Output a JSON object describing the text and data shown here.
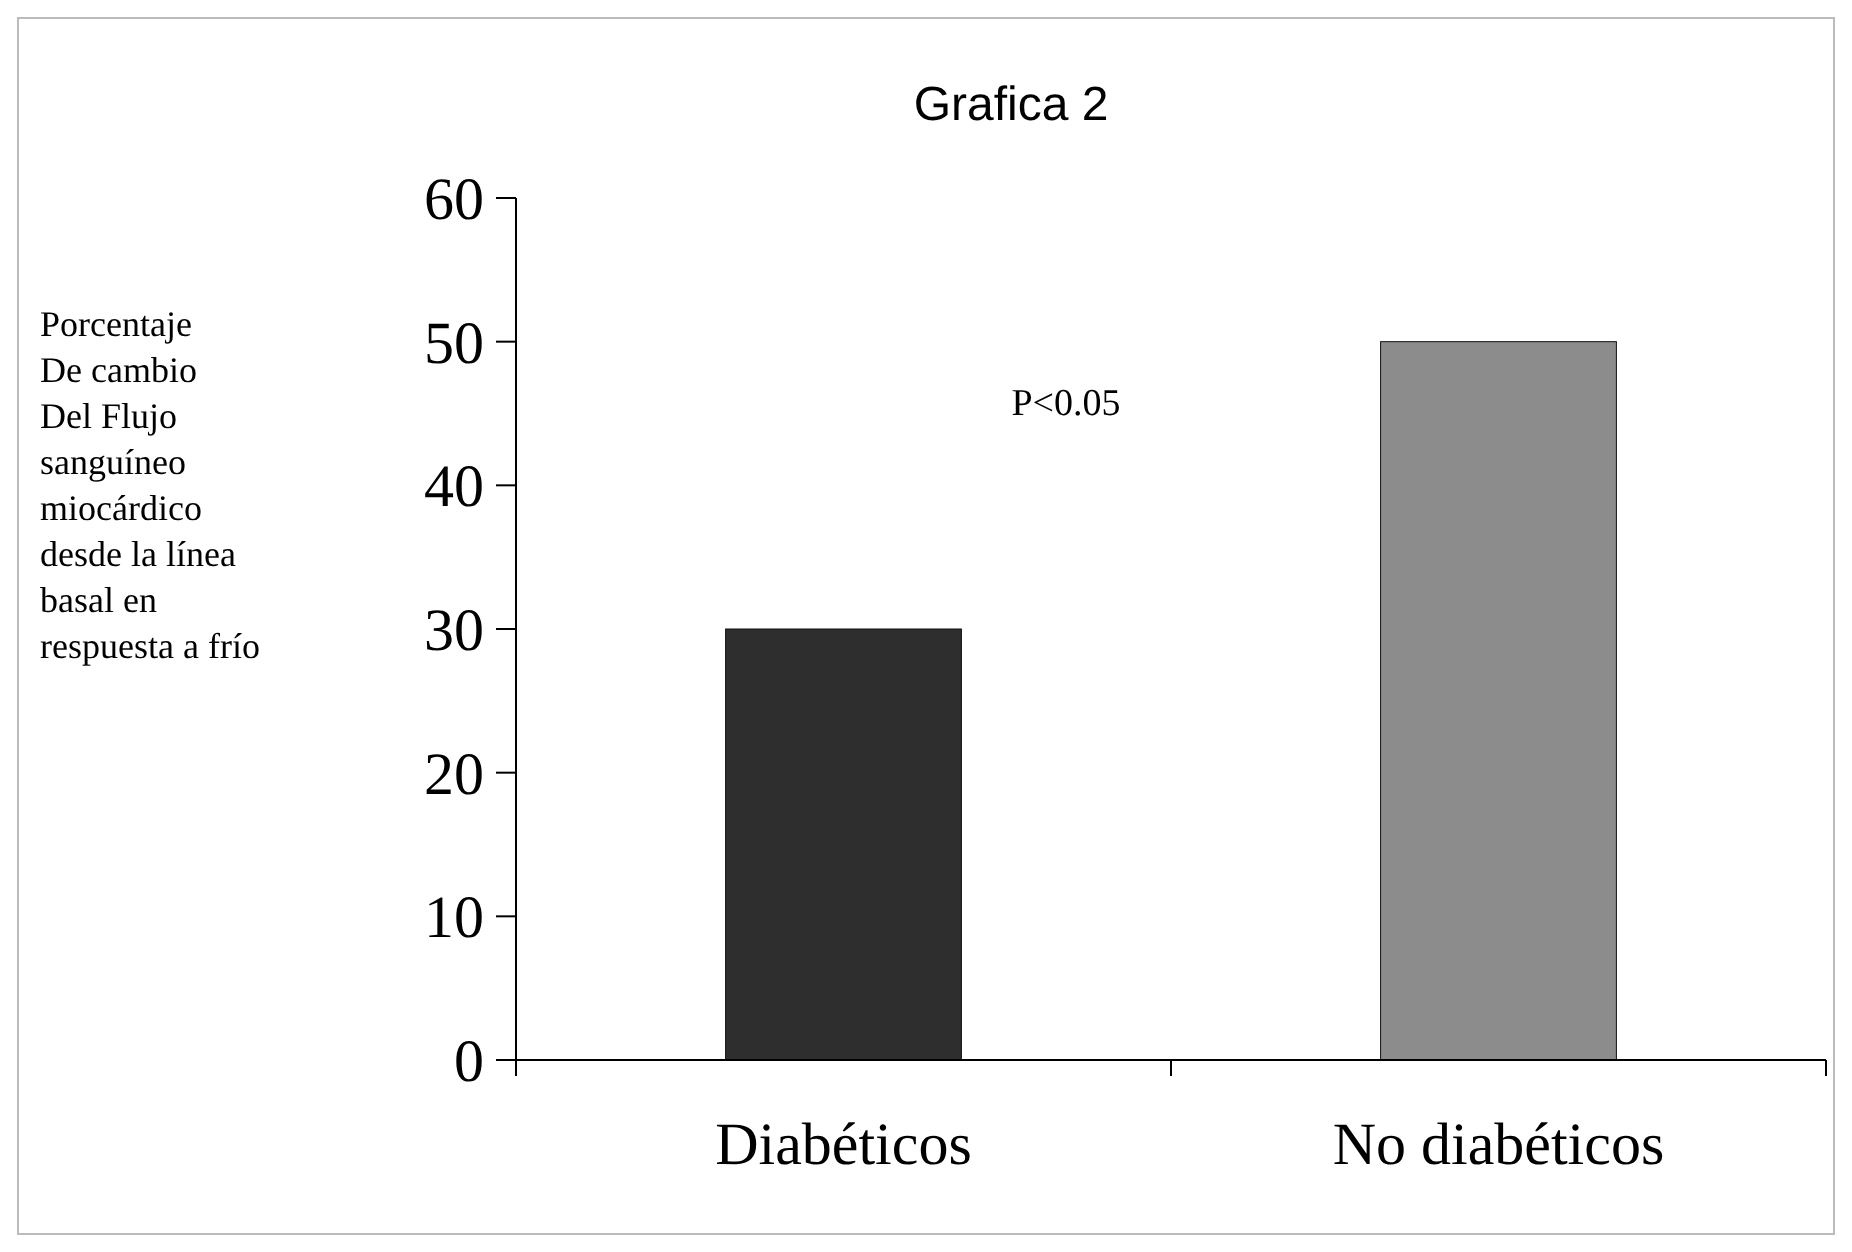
{
  "chart_data": {
    "type": "bar",
    "title": "Grafica 2",
    "ylabel": "Porcentaje\nDe cambio\nDel Flujo\nsanguíneo\nmiocárdico\ndesde la línea\nbasal en\nrespuesta a frío",
    "categories": [
      "Diabéticos",
      "No diabéticos"
    ],
    "values": [
      30,
      50
    ],
    "colors": [
      "#2e2e2e",
      "#8c8c8c"
    ],
    "ylim": [
      0,
      60
    ],
    "yticks": [
      0,
      10,
      20,
      30,
      40,
      50,
      60
    ],
    "annotations": [
      "P<0.05"
    ]
  }
}
